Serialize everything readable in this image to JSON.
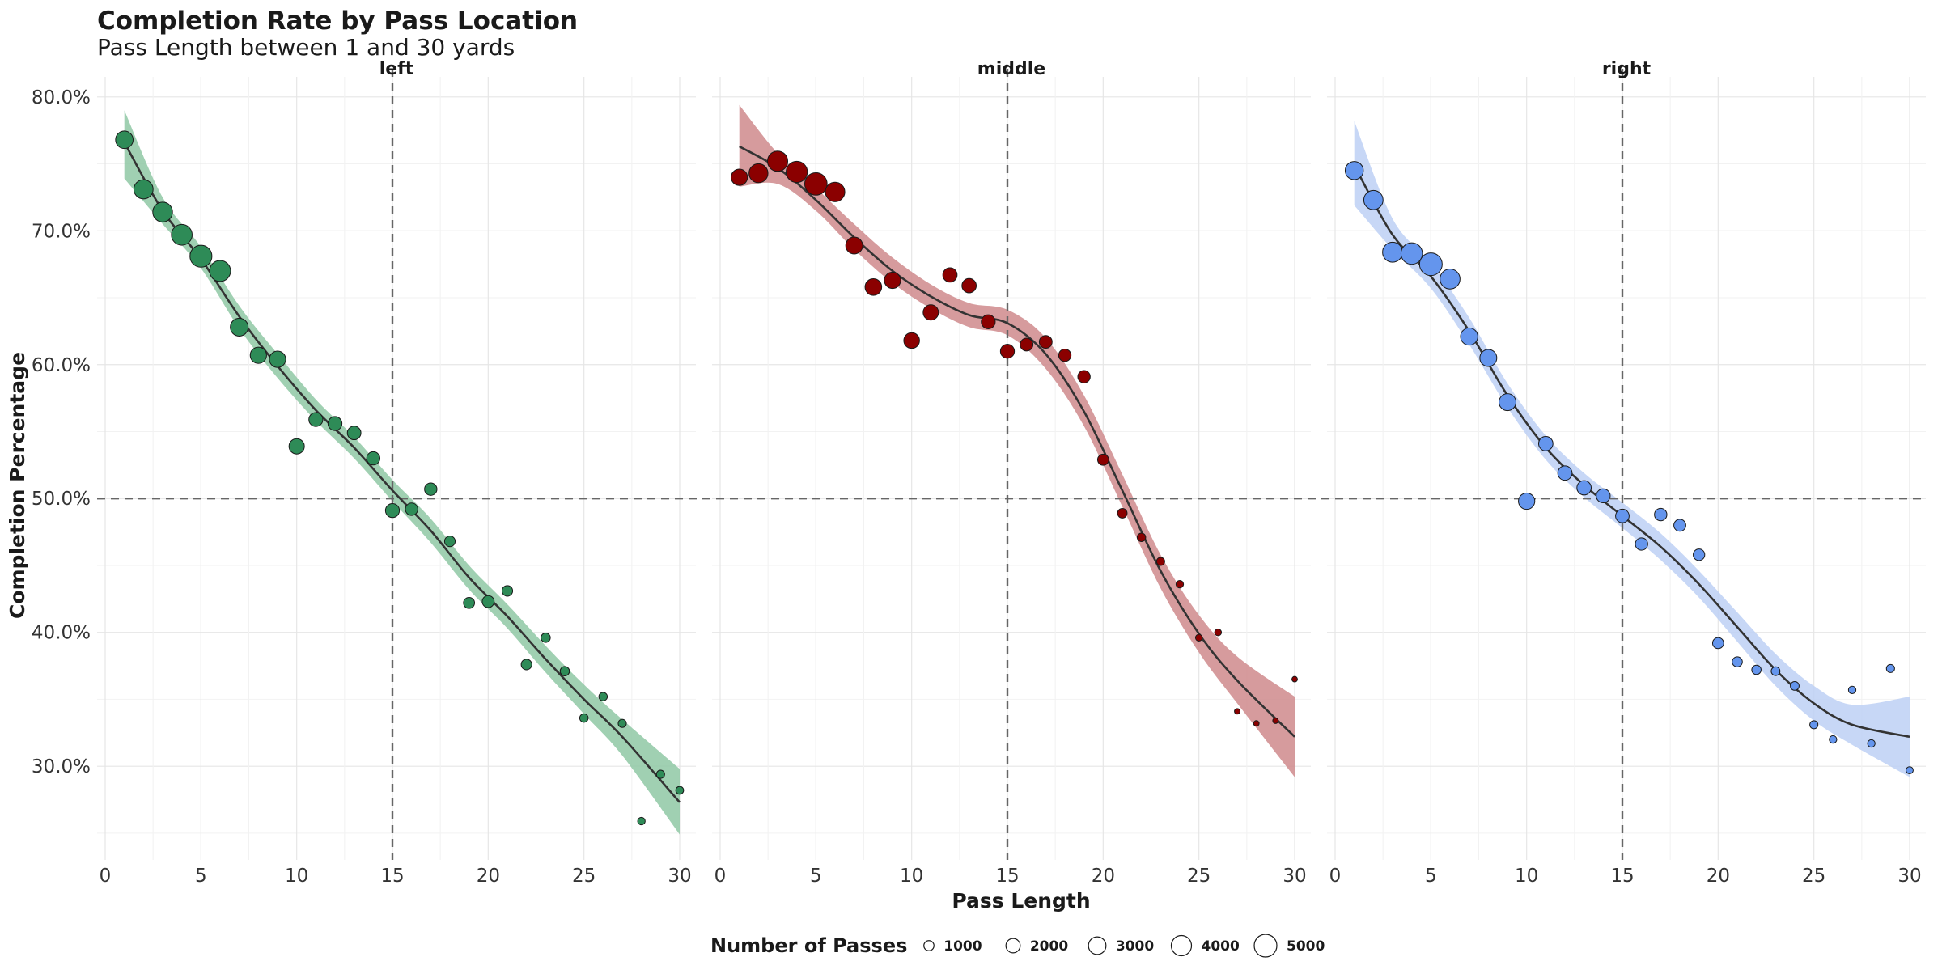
{
  "chart_data": {
    "type": "scatter",
    "title": "Completion Rate by Pass Location",
    "subtitle": "Pass Length between 1 and 30 yards",
    "xlabel": "Pass Length",
    "ylabel": "Completion Percentage",
    "xlim": [
      0,
      30
    ],
    "ylim": [
      23.0,
      81.5
    ],
    "x_ticks": [
      "0",
      "5",
      "10",
      "15",
      "20",
      "25",
      "30"
    ],
    "y_ticks": [
      {
        "value": 30,
        "label": "30.0%"
      },
      {
        "value": 40,
        "label": "40.0%"
      },
      {
        "value": 50,
        "label": "50.0%"
      },
      {
        "value": 60,
        "label": "60.0%"
      },
      {
        "value": 70,
        "label": "70.0%"
      },
      {
        "value": 80,
        "label": "80.0%"
      }
    ],
    "reference_lines": {
      "x": 15,
      "y": 50
    },
    "grid": true,
    "legend": {
      "title": "Number of Passes",
      "position": "bottom",
      "items": [
        {
          "label": "1000",
          "value": 1000
        },
        {
          "label": "2000",
          "value": 2000
        },
        {
          "label": "3000",
          "value": 3000
        },
        {
          "label": "4000",
          "value": 4000
        },
        {
          "label": "5000",
          "value": 5000
        }
      ]
    },
    "panels": [
      {
        "name": "left",
        "color": "#2e8b57",
        "band_color": "#8fc8a4",
        "points": [
          {
            "x": 1,
            "y": 76.8,
            "n": 3000
          },
          {
            "x": 2,
            "y": 73.1,
            "n": 3600
          },
          {
            "x": 3,
            "y": 71.4,
            "n": 3800
          },
          {
            "x": 4,
            "y": 69.7,
            "n": 4200
          },
          {
            "x": 5,
            "y": 68.1,
            "n": 4700
          },
          {
            "x": 6,
            "y": 67.0,
            "n": 4300
          },
          {
            "x": 7,
            "y": 62.8,
            "n": 3100
          },
          {
            "x": 8,
            "y": 60.7,
            "n": 2600
          },
          {
            "x": 9,
            "y": 60.4,
            "n": 2600
          },
          {
            "x": 10,
            "y": 53.9,
            "n": 2300
          },
          {
            "x": 11,
            "y": 55.9,
            "n": 1900
          },
          {
            "x": 12,
            "y": 55.6,
            "n": 1900
          },
          {
            "x": 13,
            "y": 54.9,
            "n": 1800
          },
          {
            "x": 14,
            "y": 53.0,
            "n": 1700
          },
          {
            "x": 15,
            "y": 49.1,
            "n": 1900
          },
          {
            "x": 16,
            "y": 49.2,
            "n": 1500
          },
          {
            "x": 17,
            "y": 50.7,
            "n": 1500
          },
          {
            "x": 18,
            "y": 46.8,
            "n": 1100
          },
          {
            "x": 19,
            "y": 42.2,
            "n": 1200
          },
          {
            "x": 20,
            "y": 42.3,
            "n": 1400
          },
          {
            "x": 21,
            "y": 43.1,
            "n": 1100
          },
          {
            "x": 22,
            "y": 37.6,
            "n": 1100
          },
          {
            "x": 23,
            "y": 39.6,
            "n": 850
          },
          {
            "x": 24,
            "y": 37.1,
            "n": 850
          },
          {
            "x": 25,
            "y": 33.6,
            "n": 700
          },
          {
            "x": 26,
            "y": 35.2,
            "n": 700
          },
          {
            "x": 27,
            "y": 33.2,
            "n": 650
          },
          {
            "x": 28,
            "y": 25.9,
            "n": 550
          },
          {
            "x": 29,
            "y": 29.4,
            "n": 650
          },
          {
            "x": 30,
            "y": 28.2,
            "n": 600
          }
        ],
        "smooth": [
          {
            "x": 1,
            "y": 76.6,
            "lo": 73.9,
            "hi": 79.0
          },
          {
            "x": 3,
            "y": 71.5,
            "lo": 70.5,
            "hi": 72.5
          },
          {
            "x": 5,
            "y": 67.9,
            "lo": 67.2,
            "hi": 68.8
          },
          {
            "x": 7,
            "y": 63.6,
            "lo": 62.7,
            "hi": 64.4
          },
          {
            "x": 9,
            "y": 59.9,
            "lo": 59.0,
            "hi": 60.8
          },
          {
            "x": 11,
            "y": 56.6,
            "lo": 55.8,
            "hi": 57.4
          },
          {
            "x": 13,
            "y": 53.8,
            "lo": 53.0,
            "hi": 54.6
          },
          {
            "x": 15,
            "y": 50.6,
            "lo": 49.8,
            "hi": 51.4
          },
          {
            "x": 17,
            "y": 47.6,
            "lo": 46.7,
            "hi": 48.5
          },
          {
            "x": 19,
            "y": 44.1,
            "lo": 43.2,
            "hi": 45.0
          },
          {
            "x": 21,
            "y": 41.2,
            "lo": 40.3,
            "hi": 42.1
          },
          {
            "x": 23,
            "y": 38.0,
            "lo": 37.0,
            "hi": 39.0
          },
          {
            "x": 25,
            "y": 35.0,
            "lo": 33.9,
            "hi": 36.1
          },
          {
            "x": 27,
            "y": 32.2,
            "lo": 30.8,
            "hi": 33.5
          },
          {
            "x": 30,
            "y": 27.3,
            "lo": 24.9,
            "hi": 29.8
          }
        ]
      },
      {
        "name": "middle",
        "color": "#8b0000",
        "band_color": "#cf8a8c",
        "points": [
          {
            "x": 1,
            "y": 74.0,
            "n": 2600
          },
          {
            "x": 2,
            "y": 74.3,
            "n": 3500
          },
          {
            "x": 3,
            "y": 75.2,
            "n": 4000
          },
          {
            "x": 4,
            "y": 74.4,
            "n": 4400
          },
          {
            "x": 5,
            "y": 73.5,
            "n": 4900
          },
          {
            "x": 6,
            "y": 72.9,
            "n": 3700
          },
          {
            "x": 7,
            "y": 68.9,
            "n": 2800
          },
          {
            "x": 8,
            "y": 65.8,
            "n": 2700
          },
          {
            "x": 9,
            "y": 66.3,
            "n": 2600
          },
          {
            "x": 10,
            "y": 61.8,
            "n": 2400
          },
          {
            "x": 11,
            "y": 63.9,
            "n": 2300
          },
          {
            "x": 12,
            "y": 66.7,
            "n": 2000
          },
          {
            "x": 13,
            "y": 65.9,
            "n": 2000
          },
          {
            "x": 14,
            "y": 63.2,
            "n": 1900
          },
          {
            "x": 15,
            "y": 61.0,
            "n": 1900
          },
          {
            "x": 16,
            "y": 61.5,
            "n": 1600
          },
          {
            "x": 17,
            "y": 61.7,
            "n": 1600
          },
          {
            "x": 18,
            "y": 60.7,
            "n": 1500
          },
          {
            "x": 19,
            "y": 59.1,
            "n": 1500
          },
          {
            "x": 20,
            "y": 52.9,
            "n": 1200
          },
          {
            "x": 21,
            "y": 48.9,
            "n": 900
          },
          {
            "x": 22,
            "y": 47.1,
            "n": 700
          },
          {
            "x": 23,
            "y": 45.3,
            "n": 650
          },
          {
            "x": 24,
            "y": 43.6,
            "n": 550
          },
          {
            "x": 25,
            "y": 39.6,
            "n": 450
          },
          {
            "x": 26,
            "y": 40.0,
            "n": 450
          },
          {
            "x": 27,
            "y": 34.1,
            "n": 300
          },
          {
            "x": 28,
            "y": 33.2,
            "n": 300
          },
          {
            "x": 29,
            "y": 33.4,
            "n": 300
          },
          {
            "x": 30,
            "y": 36.5,
            "n": 300
          }
        ],
        "smooth": [
          {
            "x": 1,
            "y": 76.3,
            "lo": 73.3,
            "hi": 79.4
          },
          {
            "x": 3,
            "y": 74.7,
            "lo": 73.5,
            "hi": 75.8
          },
          {
            "x": 5,
            "y": 72.3,
            "lo": 71.5,
            "hi": 73.2
          },
          {
            "x": 7,
            "y": 69.5,
            "lo": 68.6,
            "hi": 70.5
          },
          {
            "x": 9,
            "y": 67.0,
            "lo": 66.1,
            "hi": 68.0
          },
          {
            "x": 11,
            "y": 65.1,
            "lo": 64.2,
            "hi": 66.0
          },
          {
            "x": 13,
            "y": 63.7,
            "lo": 62.8,
            "hi": 64.6
          },
          {
            "x": 15,
            "y": 63.1,
            "lo": 62.2,
            "hi": 64.1
          },
          {
            "x": 17,
            "y": 60.8,
            "lo": 59.7,
            "hi": 62.0
          },
          {
            "x": 19,
            "y": 56.5,
            "lo": 55.4,
            "hi": 57.7
          },
          {
            "x": 21,
            "y": 50.6,
            "lo": 49.4,
            "hi": 51.8
          },
          {
            "x": 23,
            "y": 44.6,
            "lo": 43.3,
            "hi": 45.8
          },
          {
            "x": 25,
            "y": 39.9,
            "lo": 38.5,
            "hi": 41.3
          },
          {
            "x": 27,
            "y": 36.4,
            "lo": 34.7,
            "hi": 38.2
          },
          {
            "x": 30,
            "y": 32.2,
            "lo": 29.2,
            "hi": 35.2
          }
        ]
      },
      {
        "name": "right",
        "color": "#6495ed",
        "band_color": "#bdd0f4",
        "points": [
          {
            "x": 1,
            "y": 74.5,
            "n": 3200
          },
          {
            "x": 2,
            "y": 72.3,
            "n": 3600
          },
          {
            "x": 3,
            "y": 68.4,
            "n": 3900
          },
          {
            "x": 4,
            "y": 68.3,
            "n": 4500
          },
          {
            "x": 5,
            "y": 67.5,
            "n": 5000
          },
          {
            "x": 6,
            "y": 66.4,
            "n": 3900
          },
          {
            "x": 7,
            "y": 62.1,
            "n": 2900
          },
          {
            "x": 8,
            "y": 60.5,
            "n": 2800
          },
          {
            "x": 9,
            "y": 57.2,
            "n": 2800
          },
          {
            "x": 10,
            "y": 49.8,
            "n": 2600
          },
          {
            "x": 11,
            "y": 54.1,
            "n": 2000
          },
          {
            "x": 12,
            "y": 51.9,
            "n": 2000
          },
          {
            "x": 13,
            "y": 50.8,
            "n": 2000
          },
          {
            "x": 14,
            "y": 50.2,
            "n": 1900
          },
          {
            "x": 15,
            "y": 48.7,
            "n": 1800
          },
          {
            "x": 16,
            "y": 46.6,
            "n": 1500
          },
          {
            "x": 17,
            "y": 48.8,
            "n": 1500
          },
          {
            "x": 18,
            "y": 48.0,
            "n": 1400
          },
          {
            "x": 19,
            "y": 45.8,
            "n": 1300
          },
          {
            "x": 20,
            "y": 39.2,
            "n": 1200
          },
          {
            "x": 21,
            "y": 37.8,
            "n": 1000
          },
          {
            "x": 22,
            "y": 37.2,
            "n": 850
          },
          {
            "x": 23,
            "y": 37.1,
            "n": 750
          },
          {
            "x": 24,
            "y": 36.0,
            "n": 750
          },
          {
            "x": 25,
            "y": 33.1,
            "n": 650
          },
          {
            "x": 26,
            "y": 32.0,
            "n": 550
          },
          {
            "x": 27,
            "y": 35.7,
            "n": 550
          },
          {
            "x": 28,
            "y": 31.7,
            "n": 550
          },
          {
            "x": 29,
            "y": 37.3,
            "n": 650
          },
          {
            "x": 30,
            "y": 29.7,
            "n": 500
          }
        ],
        "smooth": [
          {
            "x": 1,
            "y": 74.9,
            "lo": 71.9,
            "hi": 78.2
          },
          {
            "x": 3,
            "y": 69.7,
            "lo": 68.6,
            "hi": 70.9
          },
          {
            "x": 5,
            "y": 66.6,
            "lo": 65.7,
            "hi": 67.6
          },
          {
            "x": 7,
            "y": 62.5,
            "lo": 61.5,
            "hi": 63.5
          },
          {
            "x": 9,
            "y": 57.7,
            "lo": 56.8,
            "hi": 58.6
          },
          {
            "x": 11,
            "y": 53.8,
            "lo": 52.9,
            "hi": 54.7
          },
          {
            "x": 13,
            "y": 51.0,
            "lo": 50.1,
            "hi": 51.9
          },
          {
            "x": 15,
            "y": 48.7,
            "lo": 47.8,
            "hi": 49.7
          },
          {
            "x": 17,
            "y": 46.4,
            "lo": 45.4,
            "hi": 47.4
          },
          {
            "x": 19,
            "y": 43.6,
            "lo": 42.6,
            "hi": 44.6
          },
          {
            "x": 21,
            "y": 40.4,
            "lo": 39.3,
            "hi": 41.5
          },
          {
            "x": 23,
            "y": 37.2,
            "lo": 36.0,
            "hi": 38.4
          },
          {
            "x": 25,
            "y": 34.7,
            "lo": 33.4,
            "hi": 36.0
          },
          {
            "x": 27,
            "y": 33.1,
            "lo": 31.6,
            "hi": 34.6
          },
          {
            "x": 30,
            "y": 32.2,
            "lo": 29.2,
            "hi": 35.2
          }
        ]
      }
    ]
  }
}
